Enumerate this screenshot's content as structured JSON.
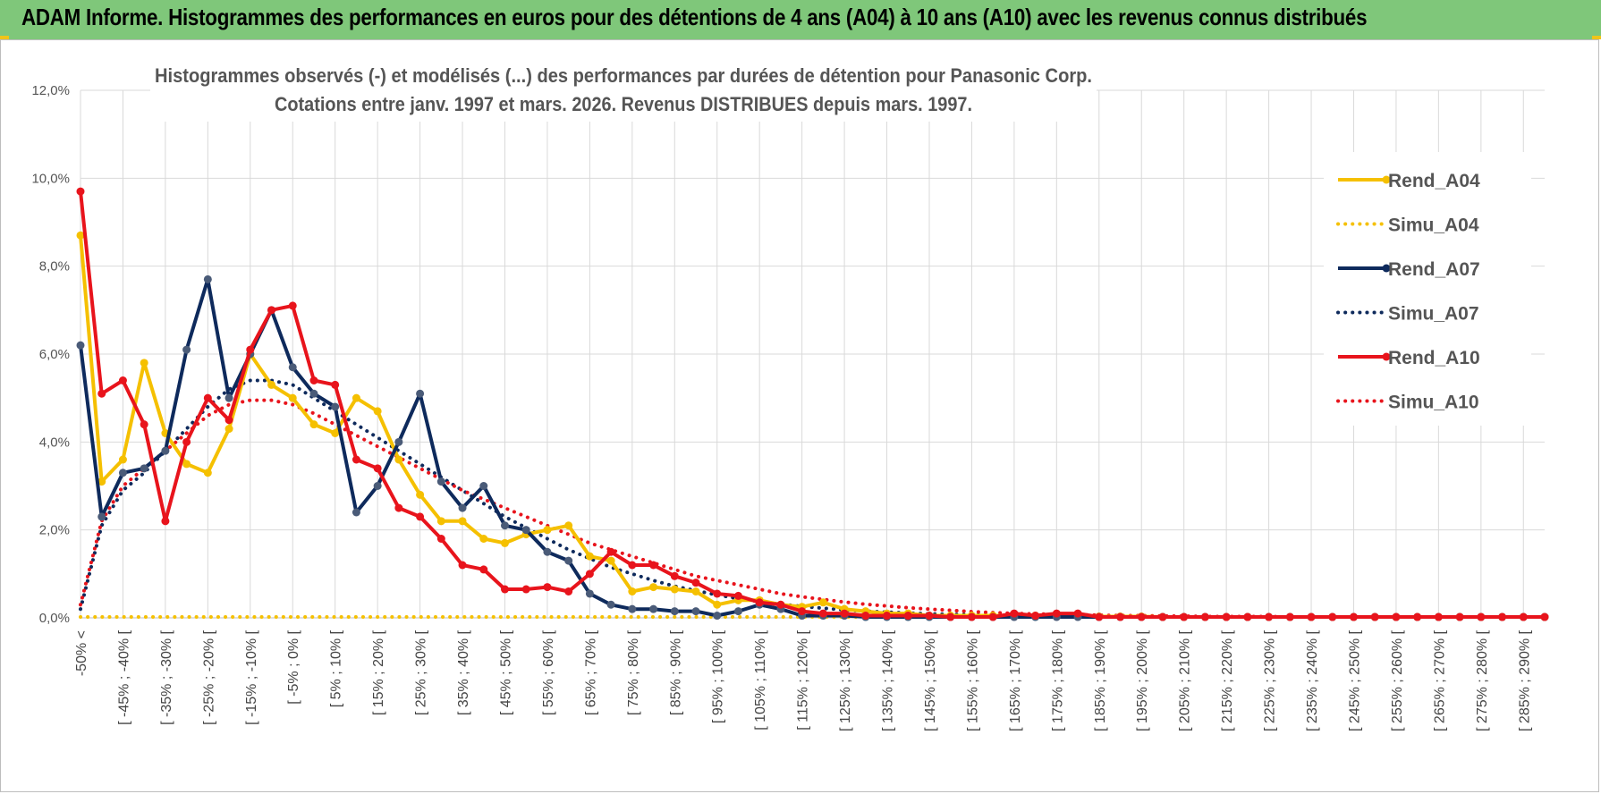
{
  "header": {
    "title": "ADAM Informe. Histogrammes des performances en euros pour des détentions de 4 ans (A04) à 10 ans (A10) avec les revenus connus distribués"
  },
  "chart_data": {
    "type": "line",
    "title": "Histogrammes observés (-) et modélisés (...) des performances par durées de détention pour Panasonic Corp.",
    "subtitle": "Cotations entre janv. 1997 et mars. 2026. Revenus DISTRIBUES depuis mars. 1997.",
    "xlabel": "",
    "ylabel": "",
    "ylim": [
      0,
      12
    ],
    "y_ticks": [
      "0,0%",
      "2,0%",
      "4,0%",
      "6,0%",
      "8,0%",
      "10,0%",
      "12,0%"
    ],
    "grid": true,
    "legend_position": "right",
    "categories": [
      "-50% <",
      "[ -50% ; -45% [",
      "[ -45% ; -40% [",
      "[ -40% ; -35% [",
      "[ -35% ; -30% [",
      "[ -30% ; -25% [",
      "[ -25% ; -20% [",
      "[ -20% ; -15% [",
      "[ -15% ; -10% [",
      "[ -10% ; -5% [",
      "[ -5% ; 0% [",
      "[ 0% ; 5% [",
      "[ 5% ; 10% [",
      "[ 10% ; 15% [",
      "[ 15% ; 20% [",
      "[ 20% ; 25% [",
      "[ 25% ; 30% [",
      "[ 30% ; 35% [",
      "[ 35% ; 40% [",
      "[ 40% ; 45% [",
      "[ 45% ; 50% [",
      "[ 50% ; 55% [",
      "[ 55% ; 60% [",
      "[ 60% ; 65% [",
      "[ 65% ; 70% [",
      "[ 70% ; 75% [",
      "[ 75% ; 80% [",
      "[ 80% ; 85% [",
      "[ 85% ; 90% [",
      "[ 90% ; 95% [",
      "[ 95% ; 100% [",
      "[ 100% ; 105% [",
      "[ 105% ; 110% [",
      "[ 110% ; 115% [",
      "[ 115% ; 120% [",
      "[ 120% ; 125% [",
      "[ 125% ; 130% [",
      "[ 130% ; 135% [",
      "[ 135% ; 140% [",
      "[ 140% ; 145% [",
      "[ 145% ; 150% [",
      "[ 150% ; 155% [",
      "[ 155% ; 160% [",
      "[ 160% ; 165% [",
      "[ 165% ; 170% [",
      "[ 170% ; 175% [",
      "[ 175% ; 180% [",
      "[ 180% ; 185% [",
      "[ 185% ; 190% [",
      "[ 190% ; 195% [",
      "[ 195% ; 200% [",
      "[ 200% ; 205% [",
      "[ 205% ; 210% [",
      "[ 210% ; 215% [",
      "[ 215% ; 220% [",
      "[ 220% ; 225% [",
      "[ 225% ; 230% [",
      "[ 230% ; 235% [",
      "[ 235% ; 240% [",
      "[ 240% ; 245% [",
      "[ 245% ; 250% [",
      "[ 250% ; 255% [",
      "[ 255% ; 260% [",
      "[ 260% ; 265% [",
      "[ 265% ; 270% [",
      "[ 270% ; 275% [",
      "[ 275% ; 280% [",
      "[ 280% ; 285% [",
      "[ 285% ; 290% [",
      "[ 290% ; 295% ["
    ],
    "visible_category_labels": [
      "-50% <",
      "[ -45% ; -40% [",
      "[ -35% ; -30% [",
      "[ -25% ; -20% [",
      "[ -15% ; -10% [",
      "[ -5% ; 0% [",
      "[ 5% ; 10% [",
      "[ 15% ; 20% [",
      "[ 25% ; 30% [",
      "[ 35% ; 40% [",
      "[ 45% ; 50% [",
      "[ 55% ; 60% [",
      "[ 65% ; 70% [",
      "[ 75% ; 80% [",
      "[ 85% ; 90% [",
      "[ 95% ; 100% [",
      "[ 105% ; 110% [",
      "[ 115% ; 120% [",
      "[ 125% ; 130% [",
      "[ 135% ; 140% [",
      "[ 145% ; 150% [",
      "[ 155% ; 160% [",
      "[ 165% ; 170% [",
      "[ 175% ; 180% [",
      "[ 185% ; 190% [",
      "[ 195% ; 200% [",
      "[ 205% ; 210% [",
      "[ 215% ; 220% [",
      "[ 225% ; 230% [",
      "[ 235% ; 240% [",
      "[ 245% ; 250% [",
      "[ 255% ; 260% [",
      "[ 265% ; 270% [",
      "[ 275% ; 280% [",
      "[ 285% ; 290% ["
    ],
    "series": [
      {
        "name": "Rend_A04",
        "style": "solid",
        "markers": true,
        "color": "#f5c000",
        "values": [
          8.7,
          3.1,
          3.6,
          5.8,
          4.2,
          3.5,
          3.3,
          4.3,
          6.0,
          5.3,
          5.0,
          4.4,
          4.2,
          5.0,
          4.7,
          3.6,
          2.8,
          2.2,
          2.2,
          1.8,
          1.7,
          1.9,
          2.0,
          2.1,
          1.4,
          1.3,
          0.6,
          0.7,
          0.65,
          0.6,
          0.3,
          0.4,
          0.4,
          0.3,
          0.25,
          0.35,
          0.2,
          0.15,
          0.1,
          0.1,
          0.05,
          0.05,
          0.05,
          0.05,
          0.05,
          0.05,
          0.05,
          0.05,
          0.03,
          0.03,
          0.03,
          0.02,
          0.02,
          0.02,
          0.02,
          0.02,
          0.02,
          0.02,
          0.02,
          0.02,
          0.02,
          0.02,
          0.02,
          0.02,
          0.02,
          0.02,
          0.02,
          0.02,
          0.02,
          0.02
        ]
      },
      {
        "name": "Simu_A04",
        "style": "dotted",
        "markers": false,
        "color": "#f5c000",
        "values": [
          0.02,
          0.02,
          0.02,
          0.02,
          0.02,
          0.02,
          0.02,
          0.02,
          0.02,
          0.02,
          0.02,
          0.02,
          0.02,
          0.02,
          0.02,
          0.02,
          0.02,
          0.02,
          0.02,
          0.02,
          0.02,
          0.02,
          0.02,
          0.02,
          0.02,
          0.02,
          0.02,
          0.02,
          0.02,
          0.02,
          0.02,
          0.02,
          0.02,
          0.02,
          0.02,
          0.02,
          0.02,
          0.02,
          0.02,
          0.02,
          0.02,
          0.02,
          0.02,
          0.02,
          0.02,
          0.02,
          0.02,
          0.02,
          0.02,
          0.02,
          0.02,
          0.02,
          0.02,
          0.02,
          0.02,
          0.02,
          0.02,
          0.02,
          0.02,
          0.02,
          0.02,
          0.02,
          0.02,
          0.02,
          0.02,
          0.02,
          0.02,
          0.02,
          0.02,
          0.02
        ]
      },
      {
        "name": "Rend_A07",
        "style": "solid",
        "markers": true,
        "color": "#0e2a5c",
        "values": [
          6.2,
          2.3,
          3.3,
          3.4,
          3.8,
          6.1,
          7.7,
          5.0,
          6.0,
          7.0,
          5.7,
          5.1,
          4.8,
          2.4,
          3.0,
          4.0,
          5.1,
          3.1,
          2.5,
          3.0,
          2.1,
          2.0,
          1.5,
          1.3,
          0.55,
          0.3,
          0.2,
          0.2,
          0.15,
          0.15,
          0.05,
          0.15,
          0.3,
          0.2,
          0.05,
          0.05,
          0.05,
          0.02,
          0.02,
          0.02,
          0.02,
          0.02,
          0.02,
          0.02,
          0.02,
          0.02,
          0.02,
          0.02,
          0.02,
          0.02,
          0.02,
          0.02,
          0.02,
          0.02,
          0.02,
          0.02,
          0.02,
          0.02,
          0.02,
          0.02,
          0.02,
          0.02,
          0.02,
          0.02,
          0.02,
          0.02,
          0.02,
          0.02,
          0.02,
          0.02
        ]
      },
      {
        "name": "Simu_A07",
        "style": "dotted",
        "markers": false,
        "color": "#0e2a5c",
        "values": [
          0.2,
          2.1,
          2.9,
          3.3,
          3.8,
          4.3,
          4.8,
          5.2,
          5.4,
          5.4,
          5.3,
          5.0,
          4.7,
          4.4,
          4.1,
          3.8,
          3.5,
          3.2,
          2.9,
          2.6,
          2.3,
          2.05,
          1.8,
          1.55,
          1.35,
          1.15,
          1.0,
          0.85,
          0.72,
          0.62,
          0.52,
          0.44,
          0.37,
          0.31,
          0.26,
          0.22,
          0.18,
          0.15,
          0.13,
          0.11,
          0.09,
          0.08,
          0.07,
          0.06,
          0.05,
          0.04,
          0.04,
          0.03,
          0.03,
          0.02,
          0.02,
          0.02,
          0.02,
          0.02,
          0.02,
          0.02,
          0.02,
          0.02,
          0.02,
          0.02,
          0.02,
          0.02,
          0.02,
          0.02,
          0.02,
          0.02,
          0.02,
          0.02,
          0.02,
          0.02
        ]
      },
      {
        "name": "Rend_A10",
        "style": "solid",
        "markers": true,
        "color": "#e8141c",
        "values": [
          9.7,
          5.1,
          5.4,
          4.4,
          2.2,
          4.0,
          5.0,
          4.5,
          6.1,
          7.0,
          7.1,
          5.4,
          5.3,
          3.6,
          3.4,
          2.5,
          2.3,
          1.8,
          1.2,
          1.1,
          0.65,
          0.65,
          0.7,
          0.6,
          1.0,
          1.5,
          1.2,
          1.2,
          0.95,
          0.8,
          0.55,
          0.5,
          0.35,
          0.3,
          0.15,
          0.1,
          0.1,
          0.05,
          0.05,
          0.05,
          0.05,
          0.02,
          0.02,
          0.02,
          0.1,
          0.05,
          0.1,
          0.1,
          0.02,
          0.02,
          0.02,
          0.02,
          0.02,
          0.02,
          0.02,
          0.02,
          0.02,
          0.02,
          0.02,
          0.02,
          0.02,
          0.02,
          0.02,
          0.02,
          0.02,
          0.02,
          0.02,
          0.02,
          0.02,
          0.02
        ]
      },
      {
        "name": "Simu_A10",
        "style": "dotted",
        "markers": false,
        "color": "#e8141c",
        "values": [
          0.3,
          2.2,
          3.0,
          3.4,
          3.8,
          4.2,
          4.6,
          4.85,
          4.95,
          4.95,
          4.85,
          4.65,
          4.4,
          4.15,
          3.9,
          3.65,
          3.4,
          3.15,
          2.9,
          2.7,
          2.5,
          2.3,
          2.1,
          1.9,
          1.7,
          1.55,
          1.4,
          1.25,
          1.1,
          0.95,
          0.85,
          0.75,
          0.65,
          0.55,
          0.48,
          0.42,
          0.36,
          0.31,
          0.27,
          0.23,
          0.2,
          0.17,
          0.14,
          0.12,
          0.1,
          0.09,
          0.08,
          0.07,
          0.06,
          0.05,
          0.05,
          0.04,
          0.04,
          0.03,
          0.03,
          0.03,
          0.03,
          0.02,
          0.02,
          0.02,
          0.02,
          0.02,
          0.02,
          0.02,
          0.02,
          0.02,
          0.02,
          0.02,
          0.02,
          0.02
        ]
      }
    ]
  }
}
